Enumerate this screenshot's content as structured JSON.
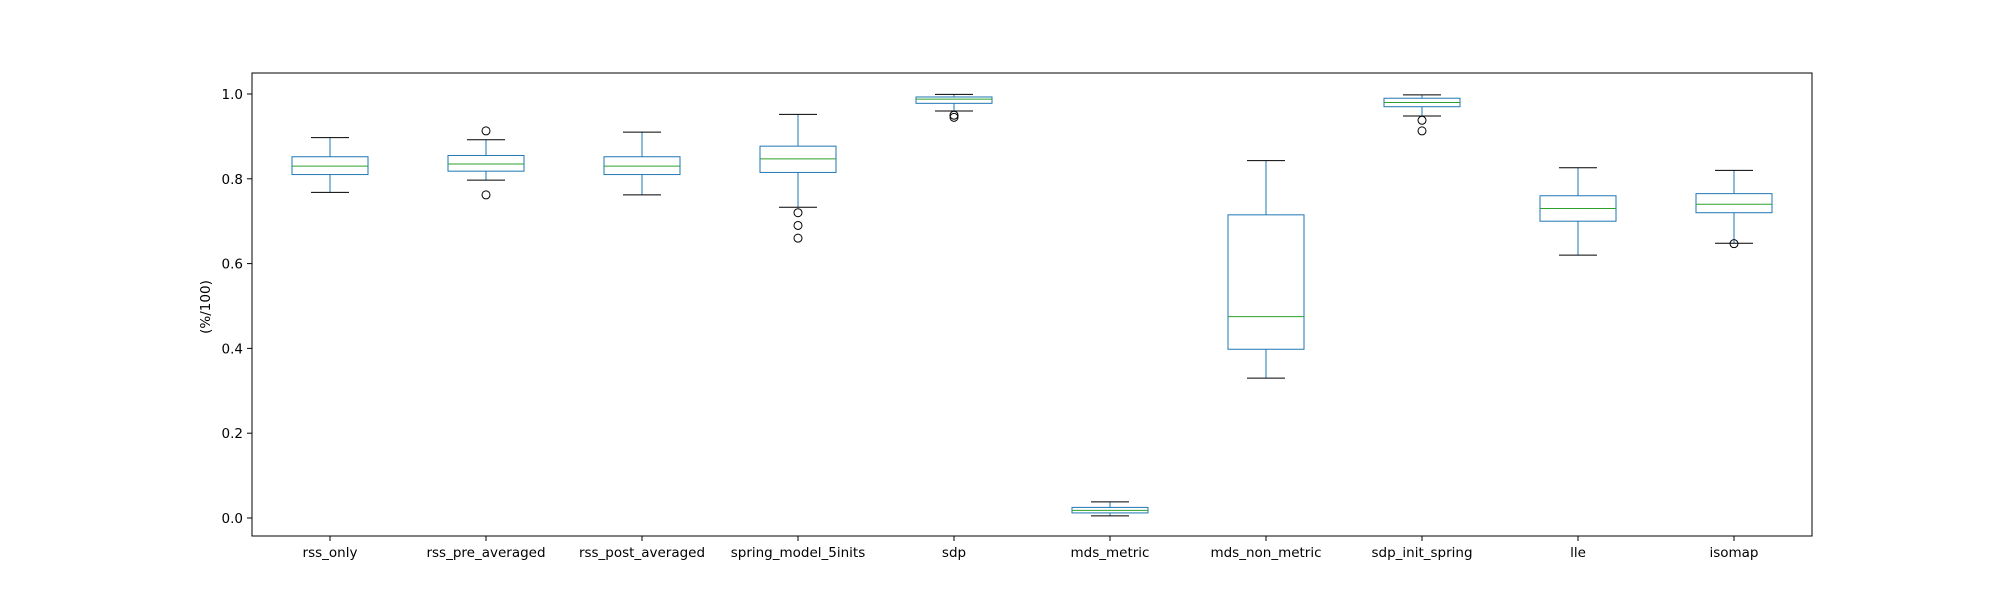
{
  "chart_data": {
    "type": "box",
    "title": "",
    "xlabel": "",
    "ylabel": "(%/100)",
    "ylim": [
      -0.04,
      1.05
    ],
    "yticks": [
      "0.0",
      "0.2",
      "0.4",
      "0.6",
      "0.8",
      "1.0"
    ],
    "grid": false,
    "legend": "none",
    "colors": {
      "box": "#1f77b4",
      "median": "#2ca02c",
      "whisker_cap": "#000000",
      "flier": "#000000"
    },
    "categories": [
      "rss_only",
      "rss_pre_averaged",
      "rss_post_averaged",
      "spring_model_5inits",
      "sdp",
      "mds_metric",
      "mds_non_metric",
      "sdp_init_spring",
      "lle",
      "isomap"
    ],
    "boxes": [
      {
        "category": "rss_only",
        "whisker_low": 0.768,
        "q1": 0.81,
        "median": 0.83,
        "q3": 0.852,
        "whisker_high": 0.897,
        "fliers": []
      },
      {
        "category": "rss_pre_averaged",
        "whisker_low": 0.797,
        "q1": 0.818,
        "median": 0.835,
        "q3": 0.855,
        "whisker_high": 0.892,
        "fliers": [
          0.913,
          0.762
        ]
      },
      {
        "category": "rss_post_averaged",
        "whisker_low": 0.762,
        "q1": 0.81,
        "median": 0.83,
        "q3": 0.852,
        "whisker_high": 0.91,
        "fliers": []
      },
      {
        "category": "spring_model_5inits",
        "whisker_low": 0.733,
        "q1": 0.815,
        "median": 0.847,
        "q3": 0.877,
        "whisker_high": 0.952,
        "fliers": [
          0.72,
          0.69,
          0.66
        ]
      },
      {
        "category": "sdp",
        "whisker_low": 0.96,
        "q1": 0.978,
        "median": 0.988,
        "q3": 0.993,
        "whisker_high": 0.999,
        "fliers": [
          0.95,
          0.945
        ]
      },
      {
        "category": "mds_metric",
        "whisker_low": 0.005,
        "q1": 0.012,
        "median": 0.018,
        "q3": 0.025,
        "whisker_high": 0.038,
        "fliers": []
      },
      {
        "category": "mds_non_metric",
        "whisker_low": 0.33,
        "q1": 0.398,
        "median": 0.475,
        "q3": 0.715,
        "whisker_high": 0.843,
        "fliers": []
      },
      {
        "category": "sdp_init_spring",
        "whisker_low": 0.948,
        "q1": 0.97,
        "median": 0.98,
        "q3": 0.99,
        "whisker_high": 0.998,
        "fliers": [
          0.938,
          0.913
        ]
      },
      {
        "category": "lle",
        "whisker_low": 0.62,
        "q1": 0.7,
        "median": 0.73,
        "q3": 0.76,
        "whisker_high": 0.826,
        "fliers": []
      },
      {
        "category": "isomap",
        "whisker_low": 0.648,
        "q1": 0.72,
        "median": 0.74,
        "q3": 0.765,
        "whisker_high": 0.82,
        "fliers": [
          0.647
        ]
      }
    ]
  }
}
